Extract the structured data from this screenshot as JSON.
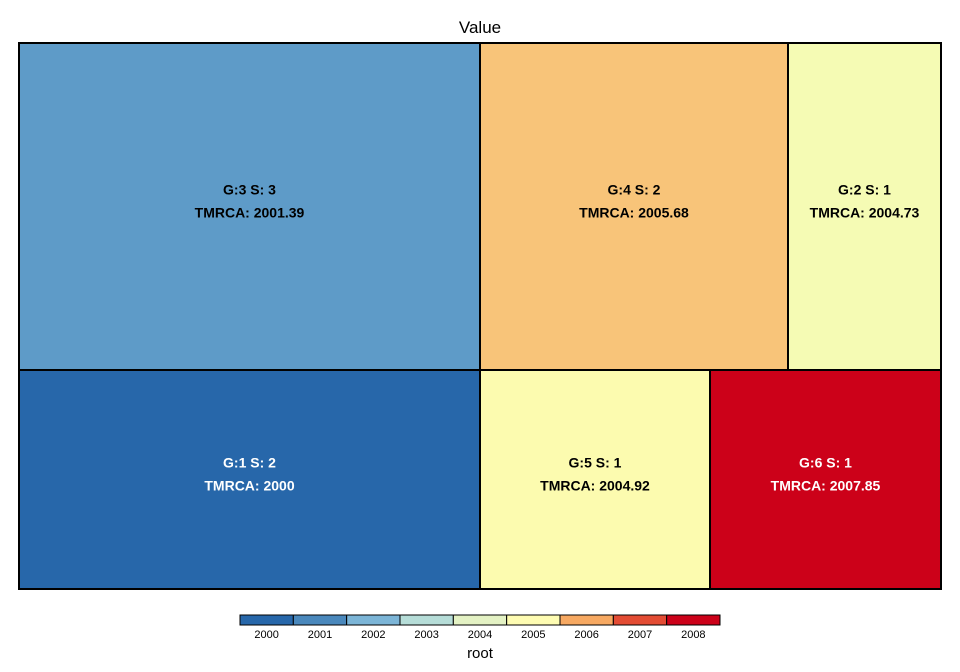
{
  "chart_data": {
    "type": "treemap",
    "title": "Value",
    "tiles": [
      {
        "group": "G:3",
        "size": 3,
        "label": "G:3 S: 3",
        "tmrca": "TMRCA: 2001.39",
        "value": 2001.39,
        "color": "#5E9BC8",
        "text_color": "#000000"
      },
      {
        "group": "G:4",
        "size": 2,
        "label": "G:4 S: 2",
        "tmrca": "TMRCA: 2005.68",
        "value": 2005.68,
        "color": "#F8C479",
        "text_color": "#000000"
      },
      {
        "group": "G:2",
        "size": 1,
        "label": "G:2 S: 1",
        "tmrca": "TMRCA: 2004.73",
        "value": 2004.73,
        "color": "#F5FBB4",
        "text_color": "#000000"
      },
      {
        "group": "G:1",
        "size": 2,
        "label": "G:1 S: 2",
        "tmrca": "TMRCA: 2000",
        "value": 2000,
        "color": "#2767AA",
        "text_color": "#ffffff"
      },
      {
        "group": "G:5",
        "size": 1,
        "label": "G:5 S: 1",
        "tmrca": "TMRCA: 2004.92",
        "value": 2004.92,
        "color": "#FCFBAF",
        "text_color": "#000000"
      },
      {
        "group": "G:6",
        "size": 1,
        "label": "G:6 S: 1",
        "tmrca": "TMRCA: 2007.85",
        "value": 2007.85,
        "color": "#CC0119",
        "text_color": "#ffffff"
      }
    ],
    "legend": {
      "title": "root",
      "placement": "bottom",
      "ticks": [
        "2000",
        "2001",
        "2002",
        "2003",
        "2004",
        "2005",
        "2006",
        "2007",
        "2008"
      ],
      "colors": [
        "#2767AA",
        "#4A88BC",
        "#7CB5D7",
        "#B6DDD8",
        "#E4F2C4",
        "#FEFCB2",
        "#F7A962",
        "#E34C34",
        "#CC0119"
      ]
    }
  }
}
